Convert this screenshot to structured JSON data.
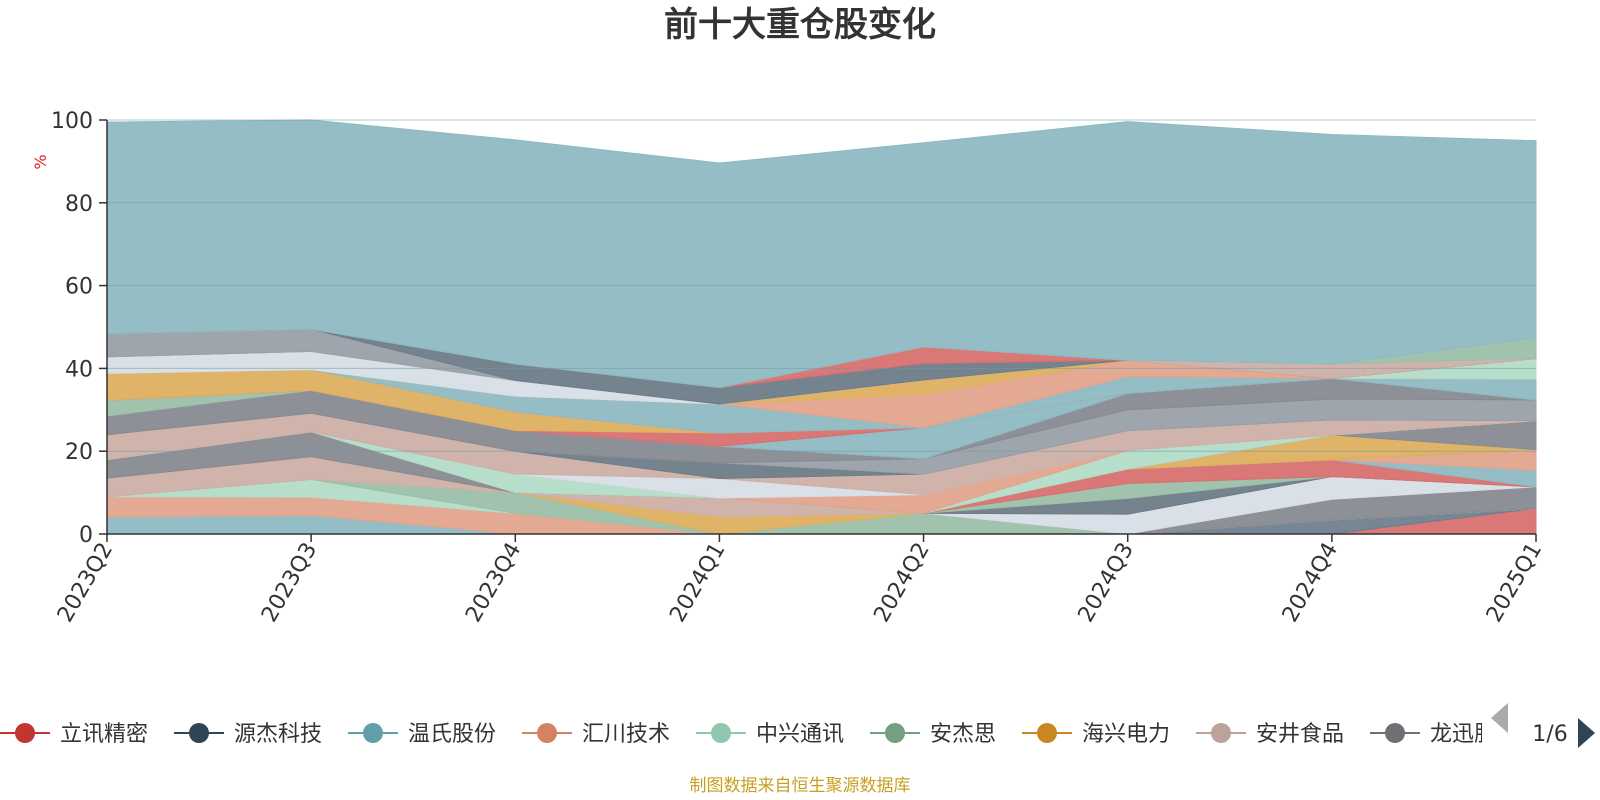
{
  "chart_data": {
    "type": "area",
    "title": "前十大重仓股变化",
    "ylabel": "%",
    "ylim": [
      0,
      100
    ],
    "yticks": [
      "0",
      "20",
      "40",
      "60",
      "80",
      "100"
    ],
    "categories": [
      "2023Q2",
      "2023Q3",
      "2023Q4",
      "2024Q1",
      "2024Q2",
      "2024Q3",
      "2024Q4",
      "2025Q1"
    ],
    "grid": true,
    "series": [
      {
        "name": "立讯精密",
        "color": "#d87070",
        "values": [
          0,
          0,
          0,
          0,
          0,
          0,
          0,
          6.2
        ]
      },
      {
        "name": "源杰科技",
        "color": "#6f7f8e",
        "values": [
          0,
          0,
          0,
          0,
          0,
          0,
          3.4,
          0
        ]
      },
      {
        "name": "温氏股份",
        "color": "#8fb9c2",
        "values": [
          4.1,
          4.5,
          0,
          0,
          0,
          0,
          0,
          0
        ]
      },
      {
        "name": "汇川技术",
        "color": "#e2a48c",
        "values": [
          4.9,
          4.4,
          5.0,
          0,
          0,
          0,
          0,
          0
        ]
      },
      {
        "name": "中兴通讯",
        "color": "#b3dbc8",
        "values": [
          0,
          4.3,
          0,
          0,
          0,
          0,
          0,
          0
        ]
      },
      {
        "name": "安杰思",
        "color": "#9cbfa8",
        "values": [
          0,
          0,
          5.0,
          0,
          5.0,
          0,
          0,
          0
        ]
      },
      {
        "name": "海兴电力",
        "color": "#ddb060",
        "values": [
          0,
          0,
          0,
          4.2,
          0,
          0,
          0,
          0
        ]
      },
      {
        "name": "安井食品",
        "color": "#cdb0a8",
        "values": [
          4.5,
          5.5,
          0,
          4.5,
          0,
          0,
          0,
          0
        ]
      },
      {
        "name": "龙迅股份",
        "color": "#888a92",
        "values": [
          0,
          0,
          0,
          0,
          0,
          0,
          5.0,
          5.2
        ]
      },
      {
        "name": "",
        "color": "#d8dee6",
        "values": [
          0,
          0,
          0,
          0,
          0,
          4.8,
          5.5,
          0
        ]
      },
      {
        "name": "",
        "color": "#9aa0a8",
        "values": [
          0,
          0,
          0,
          0,
          0,
          0,
          0,
          0
        ]
      },
      {
        "name": "",
        "color": "#6e7c88",
        "values": [
          0,
          0,
          0,
          0,
          0,
          3.8,
          0,
          0
        ]
      },
      {
        "name": "",
        "color": "#9cbfa8",
        "values": [
          0,
          0,
          0,
          0,
          0,
          3.6,
          0,
          0
        ]
      },
      {
        "name": "",
        "color": "#d87070",
        "values": [
          0,
          0,
          0,
          0,
          0,
          3.5,
          4.0,
          0
        ]
      },
      {
        "name": "",
        "color": "#8fb9c2",
        "values": [
          0,
          0,
          0,
          0,
          0,
          0,
          0,
          4.0
        ]
      },
      {
        "name": "",
        "color": "#e2a48c",
        "values": [
          0,
          0,
          0,
          0,
          0,
          0,
          0,
          5.0
        ]
      },
      {
        "name": "",
        "color": "#ddb060",
        "values": [
          0,
          0,
          0,
          0,
          0,
          0,
          6.0,
          0
        ]
      },
      {
        "name": "",
        "color": "#888a92",
        "values": [
          4.5,
          6.0,
          0,
          0,
          0,
          0,
          0,
          7.0
        ]
      },
      {
        "name": "",
        "color": "#b3dbc8",
        "values": [
          0,
          0,
          4.5,
          0,
          0,
          4.5,
          0,
          0
        ]
      },
      {
        "name": "",
        "color": "#e2a48c",
        "values": [
          0,
          0,
          0,
          0,
          4.5,
          0,
          0,
          0
        ]
      },
      {
        "name": "",
        "color": "#d8dee6",
        "values": [
          0,
          0,
          0,
          4.7,
          0,
          0,
          0,
          0
        ]
      },
      {
        "name": "",
        "color": "#cdb0a8",
        "values": [
          6.0,
          4.5,
          5.5,
          0,
          5.0,
          4.8,
          3.7,
          0
        ]
      },
      {
        "name": "",
        "color": "#6e7c88",
        "values": [
          0,
          0,
          0,
          3.8,
          0,
          0,
          0,
          0
        ]
      },
      {
        "name": "",
        "color": "#9aa0a8",
        "values": [
          0,
          0,
          0,
          0,
          3.7,
          5.0,
          5.0,
          5.0
        ]
      },
      {
        "name": "",
        "color": "#888a92",
        "values": [
          4.5,
          5.5,
          5.0,
          4.0,
          0,
          4.0,
          5.0,
          0
        ]
      },
      {
        "name": "",
        "color": "#9cbfa8",
        "values": [
          3.8,
          0,
          0,
          0,
          0,
          0,
          0,
          0
        ]
      },
      {
        "name": "",
        "color": "#8fb9c2",
        "values": [
          0,
          0,
          0,
          0,
          7.5,
          0,
          0,
          5.0
        ]
      },
      {
        "name": "",
        "color": "#d87070",
        "values": [
          0,
          0,
          0,
          3.2,
          0,
          0,
          0,
          0
        ]
      },
      {
        "name": "",
        "color": "#ddb060",
        "values": [
          6.5,
          5.0,
          4.5,
          0,
          0,
          0,
          0,
          0
        ]
      },
      {
        "name": "",
        "color": "#8fb9c2",
        "values": [
          0,
          0,
          3.8,
          7.0,
          0,
          4.0,
          0,
          0
        ]
      },
      {
        "name": "",
        "color": "#e2a48c",
        "values": [
          0,
          0,
          0,
          0,
          8.0,
          4.0,
          0,
          0
        ]
      },
      {
        "name": "",
        "color": "#ddb060",
        "values": [
          0,
          0,
          0,
          0,
          3.5,
          0,
          0,
          0
        ]
      },
      {
        "name": "",
        "color": "#d8dee6",
        "values": [
          4.0,
          4.4,
          3.8,
          0,
          0,
          0,
          0,
          0
        ]
      },
      {
        "name": "",
        "color": "#6e7c88",
        "values": [
          0,
          0,
          0,
          0,
          4.0,
          0,
          0,
          0
        ]
      },
      {
        "name": "",
        "color": "#b3dbc8",
        "values": [
          0,
          0,
          0,
          0,
          0,
          0,
          0,
          5.0
        ]
      },
      {
        "name": "",
        "color": "#9aa0a8",
        "values": [
          5.6,
          5.4,
          0,
          0,
          0,
          0,
          0,
          0
        ]
      },
      {
        "name": "",
        "color": "#6e7c88",
        "values": [
          0,
          0,
          4.0,
          4.0,
          0,
          0,
          0,
          0
        ]
      },
      {
        "name": "",
        "color": "#d87070",
        "values": [
          0,
          0,
          0,
          0,
          4.0,
          0,
          0,
          0
        ]
      },
      {
        "name": "",
        "color": "#cdb0a8",
        "values": [
          0,
          0,
          0,
          0,
          0,
          0,
          3.5,
          0
        ]
      },
      {
        "name": "",
        "color": "#9cbfa8",
        "values": [
          0,
          0,
          0,
          0,
          0,
          0,
          0,
          5.0
        ]
      },
      {
        "name": "",
        "color": "#8fb9c2",
        "values": [
          51.1,
          50.5,
          54.1,
          54.2,
          49.3,
          57.6,
          55.4,
          47.6
        ]
      }
    ],
    "legend": {
      "items": [
        {
          "name": "立讯精密",
          "color": "#c23531"
        },
        {
          "name": "源杰科技",
          "color": "#2f4554"
        },
        {
          "name": "温氏股份",
          "color": "#61a0a8"
        },
        {
          "name": "汇川技术",
          "color": "#d48265"
        },
        {
          "name": "中兴通讯",
          "color": "#91c7ae"
        },
        {
          "name": "安杰思",
          "color": "#749f83"
        },
        {
          "name": "海兴电力",
          "color": "#ca8622"
        },
        {
          "name": "安井食品",
          "color": "#bda29a"
        },
        {
          "name": "龙迅股份",
          "color": "#6e7074"
        }
      ],
      "placement": "bottom",
      "page": "1/6"
    },
    "source": "制图数据来自恒生聚源数据库"
  }
}
